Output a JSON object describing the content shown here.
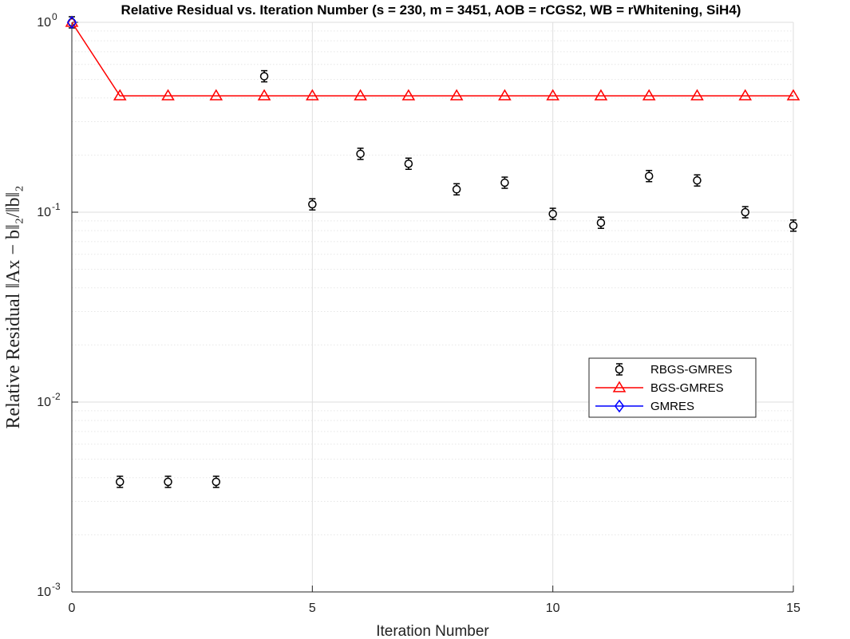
{
  "chart_data": {
    "type": "scatter",
    "title": "Relative Residual vs. Iteration Number (s = 230, m = 3451, AOB = rCGS2, WB = rWhitening, SiH4)",
    "xlabel": "Iteration Number",
    "ylabel": "Relative Residual ‖Ax − b‖₂/‖b‖₂",
    "xlim": [
      0,
      15
    ],
    "ylim": [
      0.001,
      1
    ],
    "yscale": "log",
    "grid": true,
    "legend_position": "center-right",
    "xticks": [
      0,
      5,
      10,
      15
    ],
    "yticks": [
      {
        "base": "10",
        "exp": "-3",
        "value": 0.001
      },
      {
        "base": "10",
        "exp": "-2",
        "value": 0.01
      },
      {
        "base": "10",
        "exp": "-1",
        "value": 0.1
      },
      {
        "base": "10",
        "exp": "0",
        "value": 1
      }
    ],
    "series": [
      {
        "name": "RBGS-GMRES",
        "style": "errorbar-circle",
        "color": "#000000",
        "x": [
          0,
          1,
          2,
          3,
          4,
          5,
          6,
          7,
          8,
          9,
          10,
          11,
          12,
          13,
          14,
          15
        ],
        "y": [
          1.0,
          0.0038,
          0.0038,
          0.0038,
          0.52,
          0.11,
          0.203,
          0.18,
          0.132,
          0.143,
          0.098,
          0.088,
          0.155,
          0.147,
          0.1,
          0.085
        ]
      },
      {
        "name": "BGS-GMRES",
        "style": "line-triangle",
        "color": "#ff0000",
        "x": [
          0,
          1,
          2,
          3,
          4,
          5,
          6,
          7,
          8,
          9,
          10,
          11,
          12,
          13,
          14,
          15
        ],
        "y": [
          1.0,
          0.41,
          0.41,
          0.41,
          0.41,
          0.41,
          0.41,
          0.41,
          0.41,
          0.41,
          0.41,
          0.41,
          0.41,
          0.41,
          0.41,
          0.41
        ]
      },
      {
        "name": "GMRES",
        "style": "line-diamond",
        "color": "#0000ff",
        "x": [
          0
        ],
        "y": [
          1.0
        ]
      }
    ]
  }
}
